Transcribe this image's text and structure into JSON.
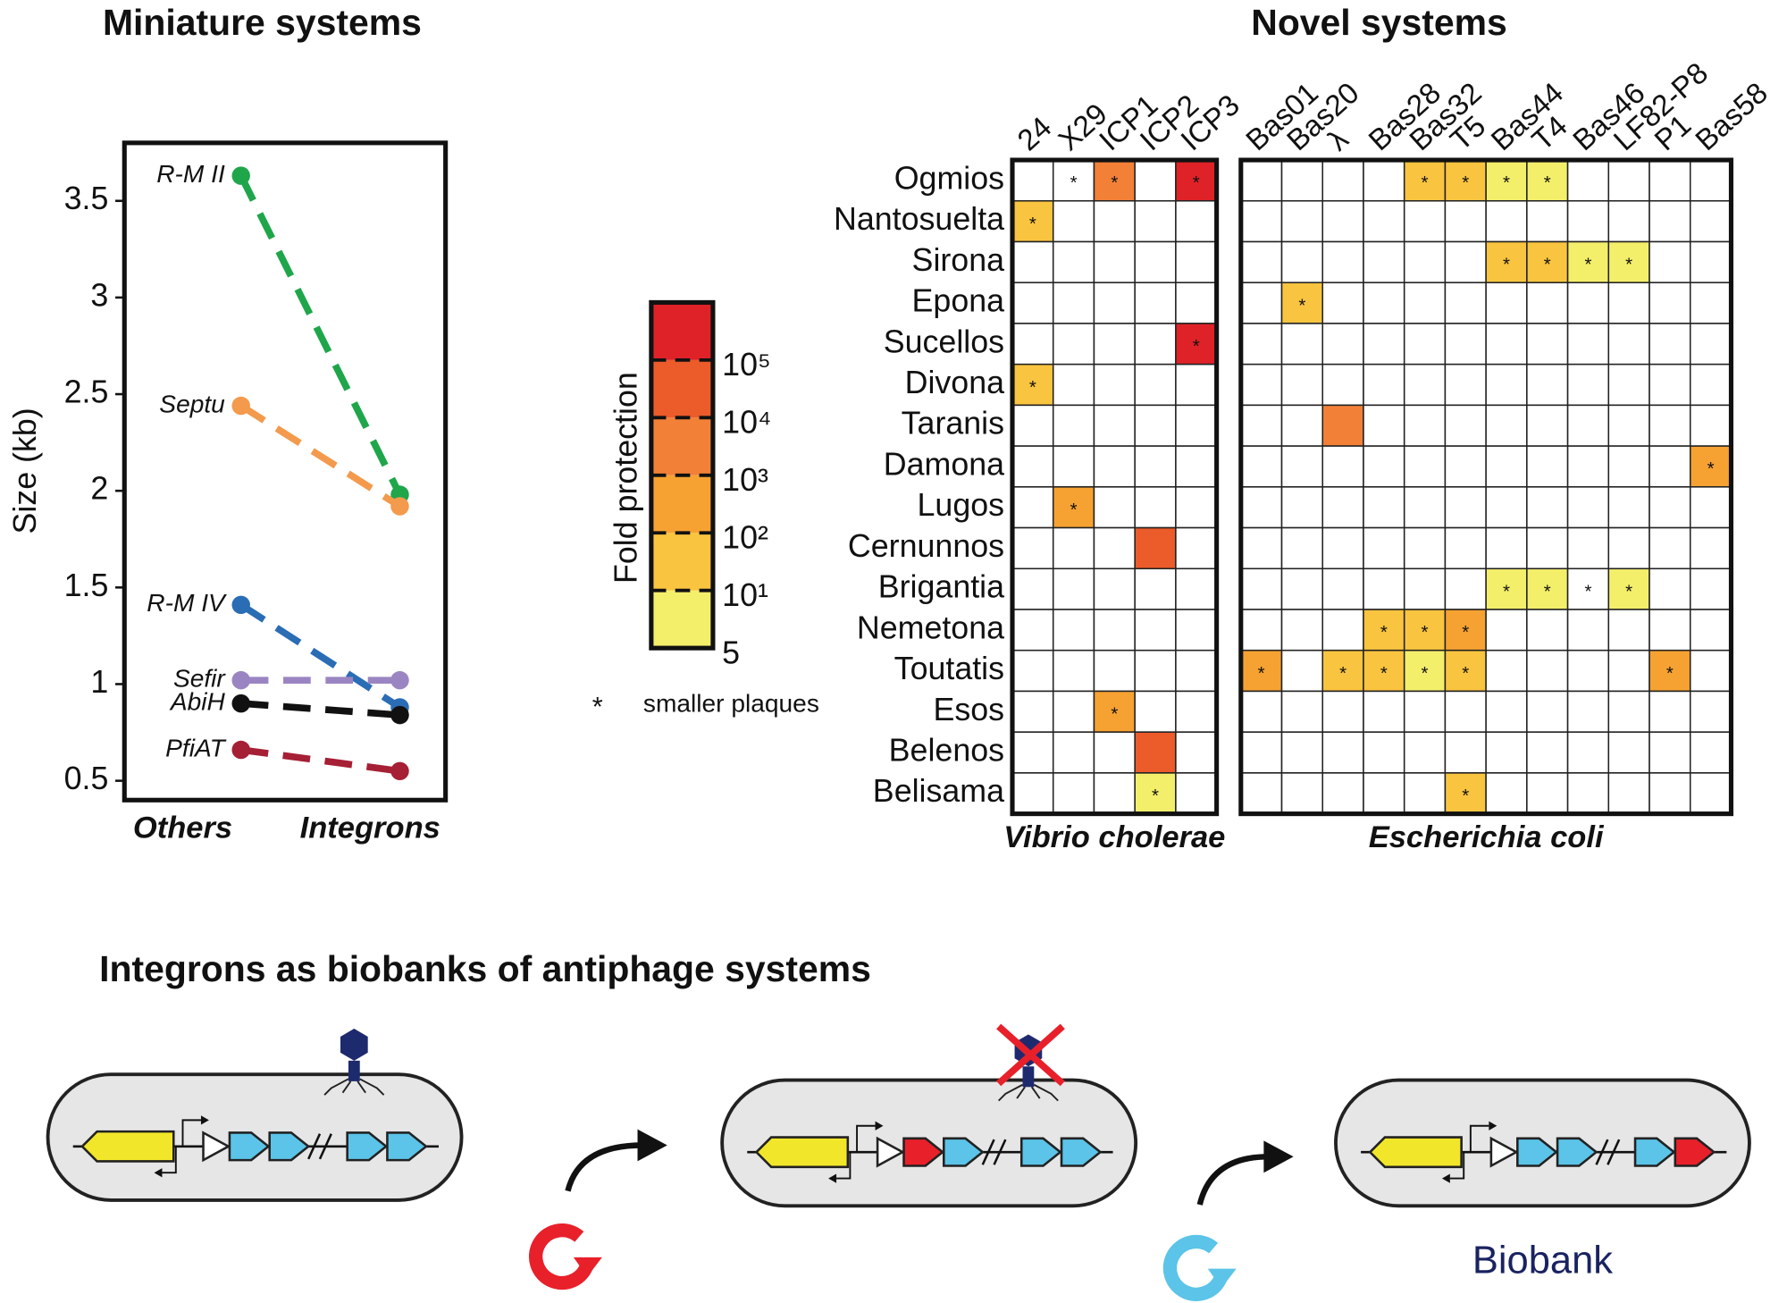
{
  "chart_data": [
    {
      "type": "line",
      "title": "Miniature systems",
      "y_label": "Size (kb)",
      "categories": [
        "Others",
        "Integrons"
      ],
      "series": [
        {
          "name": "R-M II",
          "color": "#1fa64b",
          "values": [
            3.63,
            1.98
          ]
        },
        {
          "name": "Septu",
          "color": "#f39a4c",
          "values": [
            2.44,
            1.92
          ]
        },
        {
          "name": "R-M IV",
          "color": "#2a6db5",
          "values": [
            1.41,
            0.88
          ]
        },
        {
          "name": "Sefir",
          "color": "#9a85c2",
          "values": [
            1.02,
            1.02
          ]
        },
        {
          "name": "AbiH",
          "color": "#111111",
          "values": [
            0.9,
            0.84
          ]
        },
        {
          "name": "PfiAT",
          "color": "#a51f35",
          "values": [
            0.66,
            0.55
          ]
        }
      ],
      "ylim": [
        0.4,
        3.8
      ],
      "yticks": [
        0.5,
        1,
        1.5,
        2,
        2.5,
        3,
        3.5
      ]
    },
    {
      "type": "heatmap",
      "title": "Novel systems",
      "rows": [
        "Ogmios",
        "Nantosuelta",
        "Sirona",
        "Epona",
        "Sucellos",
        "Divona",
        "Taranis",
        "Damona",
        "Lugos",
        "Cernunnos",
        "Brigantia",
        "Nemetona",
        "Toutatis",
        "Esos",
        "Belenos",
        "Belisama"
      ],
      "groups": [
        {
          "name": "Vibrio cholerae",
          "columns": [
            "24",
            "X29",
            "ICP1",
            "ICP2",
            "ICP3"
          ],
          "values": [
            [
              null,
              null,
              1000,
              null,
              100000
            ],
            [
              10,
              null,
              null,
              null,
              null
            ],
            [
              null,
              null,
              null,
              null,
              null
            ],
            [
              null,
              null,
              null,
              null,
              null
            ],
            [
              null,
              null,
              null,
              null,
              100000
            ],
            [
              10,
              null,
              null,
              null,
              null
            ],
            [
              null,
              null,
              null,
              null,
              null
            ],
            [
              null,
              null,
              null,
              null,
              null
            ],
            [
              null,
              100,
              null,
              null,
              null
            ],
            [
              null,
              null,
              null,
              10000,
              null
            ],
            [
              null,
              null,
              null,
              null,
              null
            ],
            [
              null,
              null,
              null,
              null,
              null
            ],
            [
              null,
              null,
              null,
              null,
              null
            ],
            [
              null,
              null,
              100,
              null,
              null
            ],
            [
              null,
              null,
              null,
              10000,
              null
            ],
            [
              null,
              null,
              null,
              5,
              null
            ]
          ],
          "smaller_plaques": [
            [
              false,
              true,
              true,
              false,
              true
            ],
            [
              true,
              false,
              false,
              false,
              false
            ],
            [
              false,
              false,
              false,
              false,
              false
            ],
            [
              false,
              false,
              false,
              false,
              false
            ],
            [
              false,
              false,
              false,
              false,
              true
            ],
            [
              true,
              false,
              false,
              false,
              false
            ],
            [
              false,
              false,
              false,
              false,
              false
            ],
            [
              false,
              false,
              false,
              false,
              false
            ],
            [
              false,
              true,
              false,
              false,
              false
            ],
            [
              false,
              false,
              false,
              false,
              false
            ],
            [
              false,
              false,
              false,
              false,
              false
            ],
            [
              false,
              false,
              false,
              false,
              false
            ],
            [
              false,
              false,
              false,
              false,
              false
            ],
            [
              false,
              false,
              true,
              false,
              false
            ],
            [
              false,
              false,
              false,
              false,
              false
            ],
            [
              false,
              false,
              false,
              true,
              false
            ]
          ]
        },
        {
          "name": "Escherichia coli",
          "columns": [
            "Bas01",
            "Bas20",
            "λ",
            "Bas28",
            "Bas32",
            "T5",
            "Bas44",
            "T4",
            "Bas46",
            "LF82-P8",
            "P1",
            "Bas58"
          ],
          "values": [
            [
              null,
              null,
              null,
              null,
              10,
              10,
              5,
              5,
              null,
              null,
              null,
              null
            ],
            [
              null,
              null,
              null,
              null,
              null,
              null,
              null,
              null,
              null,
              null,
              null,
              null
            ],
            [
              null,
              null,
              null,
              null,
              null,
              null,
              10,
              10,
              5,
              5,
              null,
              null
            ],
            [
              null,
              10,
              null,
              null,
              null,
              null,
              null,
              null,
              null,
              null,
              null,
              null
            ],
            [
              null,
              null,
              null,
              null,
              null,
              null,
              null,
              null,
              null,
              null,
              null,
              null
            ],
            [
              null,
              null,
              null,
              null,
              null,
              null,
              null,
              null,
              null,
              null,
              null,
              null
            ],
            [
              null,
              null,
              1000,
              null,
              null,
              null,
              null,
              null,
              null,
              null,
              null,
              null
            ],
            [
              null,
              null,
              null,
              null,
              null,
              null,
              null,
              null,
              null,
              null,
              null,
              100
            ],
            [
              null,
              null,
              null,
              null,
              null,
              null,
              null,
              null,
              null,
              null,
              null,
              null
            ],
            [
              null,
              null,
              null,
              null,
              null,
              null,
              null,
              null,
              null,
              null,
              null,
              null
            ],
            [
              null,
              null,
              null,
              null,
              null,
              null,
              5,
              5,
              null,
              5,
              null,
              null
            ],
            [
              null,
              null,
              null,
              10,
              10,
              100,
              null,
              null,
              null,
              null,
              null,
              null
            ],
            [
              100,
              null,
              10,
              10,
              5,
              10,
              null,
              null,
              null,
              null,
              100,
              null
            ],
            [
              null,
              null,
              null,
              null,
              null,
              null,
              null,
              null,
              null,
              null,
              null,
              null
            ],
            [
              null,
              null,
              null,
              null,
              null,
              null,
              null,
              null,
              null,
              null,
              null,
              null
            ],
            [
              null,
              null,
              null,
              null,
              null,
              10,
              null,
              null,
              null,
              null,
              null,
              null
            ]
          ],
          "smaller_plaques": [
            [
              false,
              false,
              false,
              false,
              true,
              true,
              true,
              true,
              false,
              false,
              false,
              false
            ],
            [
              false,
              false,
              false,
              false,
              false,
              false,
              false,
              false,
              false,
              false,
              false,
              false
            ],
            [
              false,
              false,
              false,
              false,
              false,
              false,
              true,
              true,
              true,
              true,
              false,
              false
            ],
            [
              false,
              true,
              false,
              false,
              false,
              false,
              false,
              false,
              false,
              false,
              false,
              false
            ],
            [
              false,
              false,
              false,
              false,
              false,
              false,
              false,
              false,
              false,
              false,
              false,
              false
            ],
            [
              false,
              false,
              false,
              false,
              false,
              false,
              false,
              false,
              false,
              false,
              false,
              false
            ],
            [
              false,
              false,
              false,
              false,
              false,
              false,
              false,
              false,
              false,
              false,
              false,
              false
            ],
            [
              false,
              false,
              false,
              false,
              false,
              false,
              false,
              false,
              false,
              false,
              false,
              true
            ],
            [
              false,
              false,
              false,
              false,
              false,
              false,
              false,
              false,
              false,
              false,
              false,
              false
            ],
            [
              false,
              false,
              false,
              false,
              false,
              false,
              false,
              false,
              false,
              false,
              false,
              false
            ],
            [
              false,
              false,
              false,
              false,
              false,
              false,
              true,
              true,
              true,
              true,
              false,
              false
            ],
            [
              false,
              false,
              false,
              true,
              true,
              true,
              false,
              false,
              false,
              false,
              false,
              false
            ],
            [
              true,
              false,
              true,
              true,
              true,
              true,
              false,
              false,
              false,
              false,
              true,
              false
            ],
            [
              false,
              false,
              false,
              false,
              false,
              false,
              false,
              false,
              false,
              false,
              false,
              false
            ],
            [
              false,
              false,
              false,
              false,
              false,
              false,
              false,
              false,
              false,
              false,
              false,
              false
            ],
            [
              false,
              false,
              false,
              false,
              false,
              true,
              false,
              false,
              false,
              false,
              false,
              false
            ]
          ]
        }
      ],
      "colorbar": {
        "label": "Fold protection",
        "ticks": [
          5,
          {
            "value": 10,
            "label": "10¹"
          },
          {
            "value": 100,
            "label": "10²"
          },
          {
            "value": 1000,
            "label": "10³"
          },
          {
            "value": 10000,
            "label": "10⁴"
          },
          {
            "value": 100000,
            "label": "10⁵"
          }
        ],
        "colors": [
          "#f4ef6a",
          "#f9c43f",
          "#f6a232",
          "#f28037",
          "#ec5b2a",
          "#de2227"
        ]
      },
      "legend": {
        "marker": "*",
        "label": "smaller plaques"
      }
    }
  ],
  "diagram": {
    "title": "Integrons as biobanks of antiphage systems",
    "label": "Biobank"
  }
}
